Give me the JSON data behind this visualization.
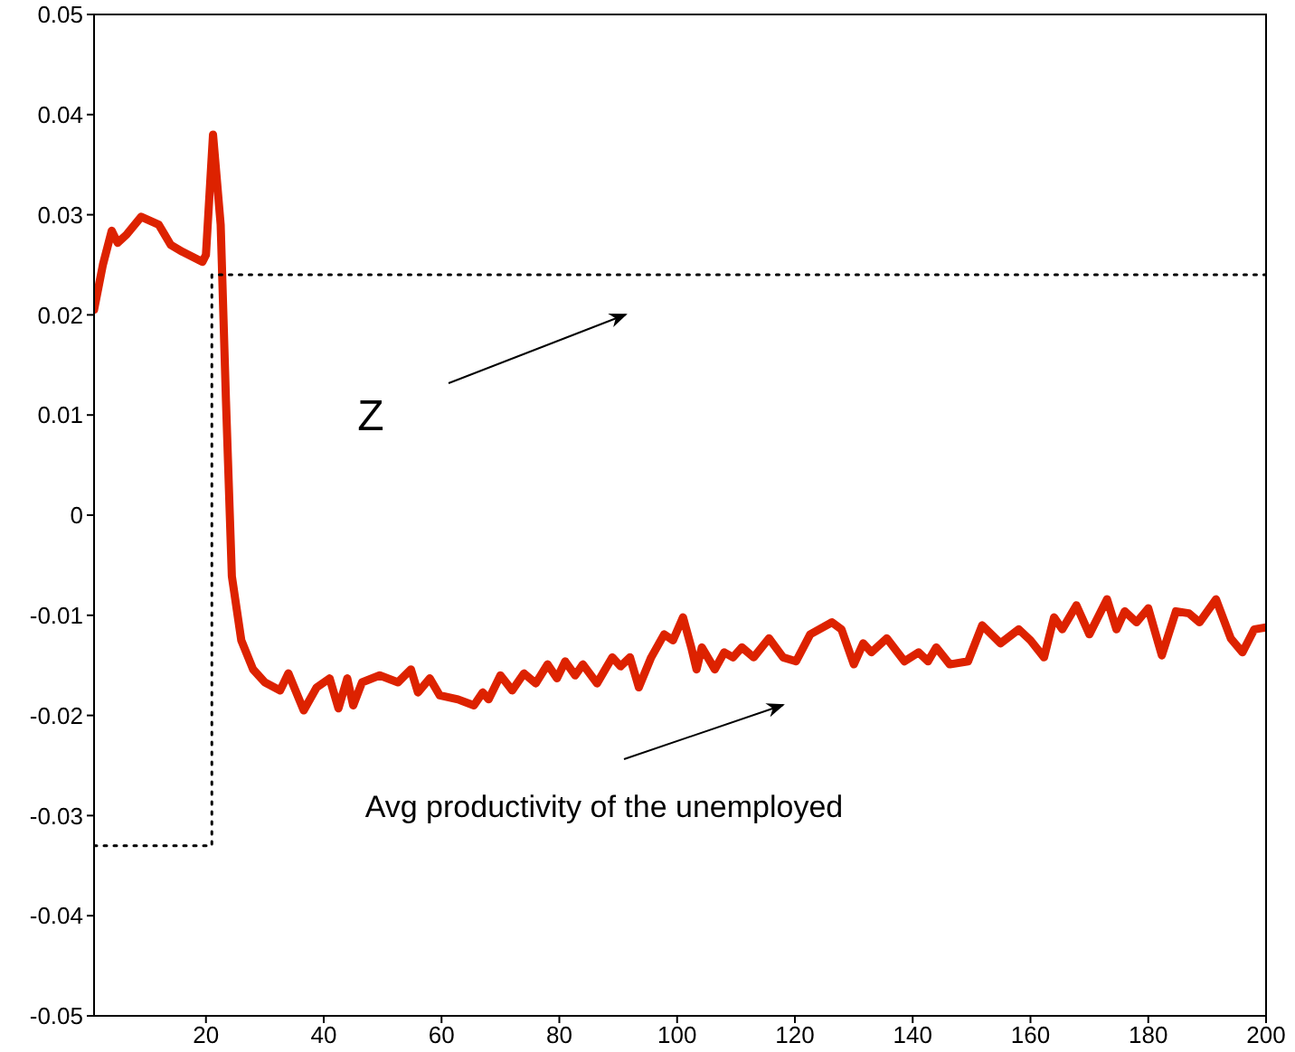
{
  "chart_data": {
    "type": "line",
    "xlim": [
      1,
      200
    ],
    "xticks": [
      20,
      40,
      60,
      80,
      100,
      120,
      140,
      160,
      180,
      200
    ],
    "ylim": [
      -0.05,
      0.05
    ],
    "yticks": [
      -0.05,
      -0.04,
      -0.03,
      -0.02,
      -0.01,
      0,
      0.01,
      0.02,
      0.03,
      0.04,
      0.05
    ],
    "marker": "none",
    "series": [
      {
        "color": "#dd2200",
        "line_style": "solid",
        "x": [
          1,
          2.5,
          4,
          5,
          6.5,
          9,
          12,
          14,
          16,
          19.4,
          20,
          21.2,
          22.5,
          23.4,
          24.4,
          26,
          28,
          30,
          32.6,
          34,
          36.6,
          38.8,
          41,
          42.5,
          44,
          45,
          46.5,
          49.5,
          52.6,
          54.8,
          56,
          58,
          59.7,
          62.8,
          65.5,
          67,
          68,
          70,
          72,
          74,
          76,
          78,
          79.6,
          81,
          82.7,
          84,
          86.4,
          89,
          90.4,
          92,
          93.5,
          95.6,
          97.8,
          99.3,
          101,
          102.4,
          103.3,
          104.2,
          106.4,
          108,
          109.5,
          111,
          113,
          115.6,
          118,
          120.2,
          122.6,
          126.3,
          127.9,
          130,
          131.6,
          133,
          135.6,
          138.6,
          141,
          142.6,
          144,
          146.3,
          149.4,
          151.8,
          154.9,
          158,
          160,
          162.3,
          164,
          165.4,
          167.8,
          170,
          173,
          174.6,
          176,
          178,
          180,
          182.3,
          184.7,
          186.9,
          188.7,
          191.5,
          194,
          196,
          198,
          200
        ],
        "values": [
          0.0205,
          0.025,
          0.0284,
          0.0272,
          0.028,
          0.0298,
          0.029,
          0.027,
          0.0263,
          0.0253,
          0.026,
          0.038,
          0.029,
          0.0114,
          -0.0061,
          -0.0125,
          -0.0154,
          -0.0167,
          -0.0175,
          -0.0158,
          -0.0195,
          -0.0172,
          -0.0163,
          -0.0193,
          -0.0163,
          -0.019,
          -0.0167,
          -0.016,
          -0.0167,
          -0.0154,
          -0.0177,
          -0.0163,
          -0.018,
          -0.0184,
          -0.019,
          -0.0177,
          -0.0184,
          -0.016,
          -0.0175,
          -0.0158,
          -0.0168,
          -0.0149,
          -0.0163,
          -0.0146,
          -0.016,
          -0.0149,
          -0.0168,
          -0.0142,
          -0.0151,
          -0.0142,
          -0.0172,
          -0.0142,
          -0.0119,
          -0.0125,
          -0.0102,
          -0.0132,
          -0.0154,
          -0.0132,
          -0.0154,
          -0.0137,
          -0.0142,
          -0.0132,
          -0.0142,
          -0.0123,
          -0.0142,
          -0.0146,
          -0.0119,
          -0.0107,
          -0.0114,
          -0.0149,
          -0.0128,
          -0.0137,
          -0.0123,
          -0.0146,
          -0.0137,
          -0.0146,
          -0.0132,
          -0.0149,
          -0.0146,
          -0.011,
          -0.0128,
          -0.0114,
          -0.0125,
          -0.0142,
          -0.0102,
          -0.0114,
          -0.009,
          -0.0119,
          -0.0084,
          -0.0114,
          -0.0096,
          -0.0107,
          -0.0093,
          -0.014,
          -0.0096,
          -0.0098,
          -0.0107,
          -0.0084,
          -0.0123,
          -0.0137,
          -0.0114,
          -0.0112
        ]
      },
      {
        "color": "#000000",
        "line_style": "dotted",
        "x": [
          1,
          21,
          21,
          200
        ],
        "values": [
          -0.033,
          -0.033,
          0.024,
          0.024
        ]
      }
    ],
    "annotations": [
      "Z",
      "Avg productivity of the unemployed"
    ]
  }
}
